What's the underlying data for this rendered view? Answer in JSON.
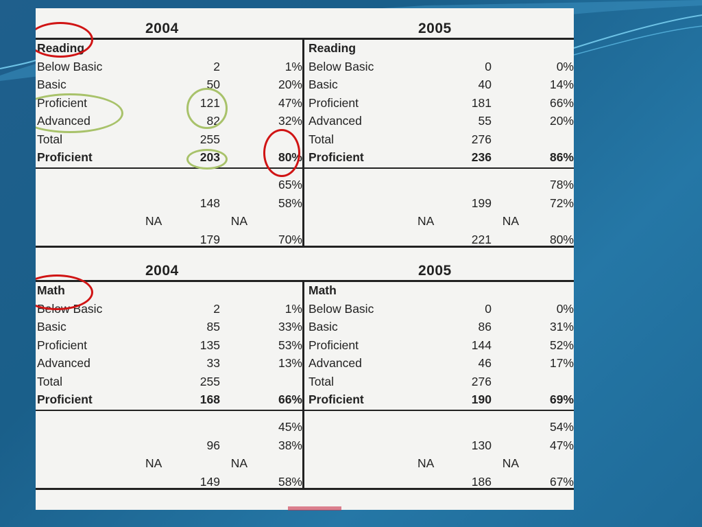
{
  "sections": [
    {
      "id": "reading",
      "left_year": "2004",
      "right_year": "2005",
      "left_title": "Reading",
      "right_title": "Reading",
      "left_rows": [
        {
          "label": "Below Basic",
          "count": "2",
          "pct": "1%"
        },
        {
          "label": "Basic",
          "count": "50",
          "pct": "20%"
        },
        {
          "label": "Proficient",
          "count": "121",
          "pct": "47%"
        },
        {
          "label": "Advanced",
          "count": "82",
          "pct": "32%"
        },
        {
          "label": "Total",
          "count": "255",
          "pct": ""
        },
        {
          "label": "Proficient",
          "count": "203",
          "pct": "80%",
          "bold": true
        }
      ],
      "right_rows": [
        {
          "label": "Below Basic",
          "count": "0",
          "pct": "0%"
        },
        {
          "label": "Basic",
          "count": "40",
          "pct": "14%"
        },
        {
          "label": "Proficient",
          "count": "181",
          "pct": "66%"
        },
        {
          "label": "Advanced",
          "count": "55",
          "pct": "20%"
        },
        {
          "label": "Total",
          "count": "276",
          "pct": ""
        },
        {
          "label": "Proficient",
          "count": "236",
          "pct": "86%",
          "bold": true
        }
      ],
      "left_extra": [
        {
          "a": "",
          "count": "",
          "pct": "65%"
        },
        {
          "a": "",
          "count": "148",
          "pct": "58%"
        },
        {
          "a": "NA",
          "count": "NA",
          "pct": ""
        },
        {
          "a": "",
          "count": "179",
          "pct": "70%"
        }
      ],
      "right_extra": [
        {
          "a": "",
          "count": "",
          "pct": "78%"
        },
        {
          "a": "",
          "count": "199",
          "pct": "72%"
        },
        {
          "a": "NA",
          "count": "NA",
          "pct": ""
        },
        {
          "a": "",
          "count": "221",
          "pct": "80%"
        }
      ]
    },
    {
      "id": "math",
      "left_year": "2004",
      "right_year": "2005",
      "left_title": "Math",
      "right_title": "Math",
      "left_rows": [
        {
          "label": "Below Basic",
          "count": "2",
          "pct": "1%"
        },
        {
          "label": "Basic",
          "count": "85",
          "pct": "33%"
        },
        {
          "label": "Proficient",
          "count": "135",
          "pct": "53%"
        },
        {
          "label": "Advanced",
          "count": "33",
          "pct": "13%"
        },
        {
          "label": "Total",
          "count": "255",
          "pct": ""
        },
        {
          "label": "Proficient",
          "count": "168",
          "pct": "66%",
          "bold": true
        }
      ],
      "right_rows": [
        {
          "label": "Below Basic",
          "count": "0",
          "pct": "0%"
        },
        {
          "label": "Basic",
          "count": "86",
          "pct": "31%"
        },
        {
          "label": "Proficient",
          "count": "144",
          "pct": "52%"
        },
        {
          "label": "Advanced",
          "count": "46",
          "pct": "17%"
        },
        {
          "label": "Total",
          "count": "276",
          "pct": ""
        },
        {
          "label": "Proficient",
          "count": "190",
          "pct": "69%",
          "bold": true
        }
      ],
      "left_extra": [
        {
          "a": "",
          "count": "",
          "pct": "45%"
        },
        {
          "a": "",
          "count": "96",
          "pct": "38%"
        },
        {
          "a": "NA",
          "count": "NA",
          "pct": ""
        },
        {
          "a": "",
          "count": "149",
          "pct": "58%"
        }
      ],
      "right_extra": [
        {
          "a": "",
          "count": "",
          "pct": "54%"
        },
        {
          "a": "",
          "count": "130",
          "pct": "47%"
        },
        {
          "a": "NA",
          "count": "NA",
          "pct": ""
        },
        {
          "a": "",
          "count": "186",
          "pct": "67%"
        }
      ]
    }
  ],
  "colors": {
    "red_circle": "#d01414",
    "green_circle": "#a8c26a",
    "slide_background": "#1f6a98"
  }
}
